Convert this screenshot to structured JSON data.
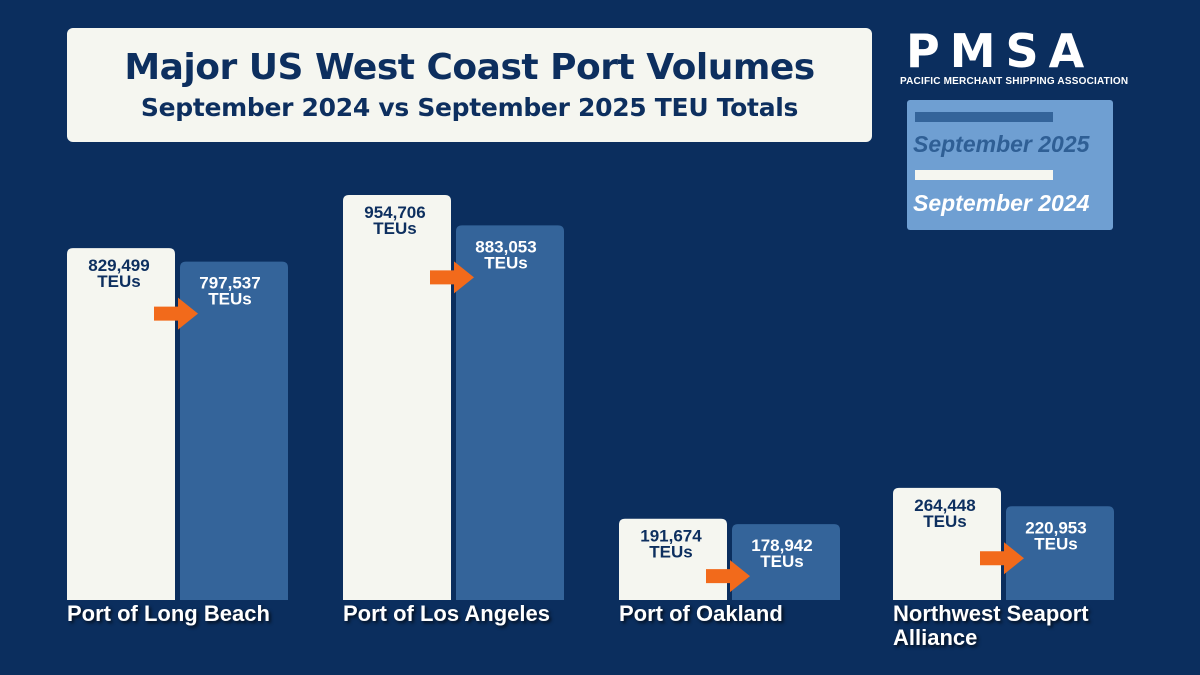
{
  "title": "Major US West Coast Port Volumes",
  "subtitle": "September 2024 vs September 2025 TEU Totals",
  "logo": {
    "wordmark": "PMSA",
    "tagline": "PACIFIC MERCHANT SHIPPING ASSOCIATION"
  },
  "legend": {
    "items": [
      {
        "label": "September 2025",
        "color": "#34649a",
        "text_color": "#2f5f95"
      },
      {
        "label": "September 2024",
        "color": "#f5f6f0",
        "text_color": "#ffffff"
      }
    ]
  },
  "colors": {
    "background": "#0b2e5e",
    "bar_2024": "#f5f6f0",
    "bar_2025": "#34649a",
    "arrow": "#f26a1b",
    "label_dark": "#0d2f5f",
    "label_light": "#ffffff"
  },
  "chart_data": {
    "type": "bar",
    "categories": [
      "Port of Long Beach",
      "Port of Los Angeles",
      "Port of Oakland",
      "Northwest Seaport Alliance"
    ],
    "series": [
      {
        "name": "September 2024",
        "values": [
          829499,
          954706,
          191674,
          264448
        ],
        "labels": [
          "829,499",
          "954,706",
          "191,674",
          "264,448"
        ]
      },
      {
        "name": "September 2025",
        "values": [
          797537,
          883053,
          178942,
          220953
        ],
        "labels": [
          "797,537",
          "883,053",
          "178,942",
          "220,953"
        ]
      }
    ],
    "unit": "TEUs",
    "ylim": [
      0,
      1000000
    ],
    "grid": false,
    "legend_position": "top-right"
  }
}
